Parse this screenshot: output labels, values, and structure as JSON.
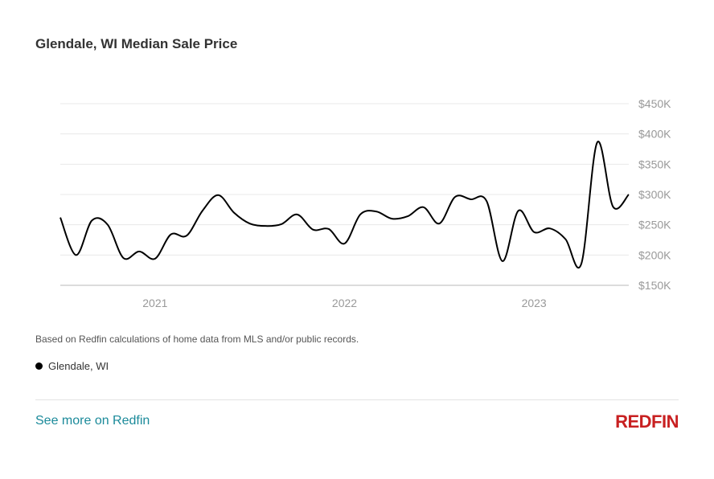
{
  "title": "Glendale, WI Median Sale Price",
  "note": "Based on Redfin calculations of home data from MLS and/or public records.",
  "legend": {
    "label": "Glendale, WI",
    "color": "#000000"
  },
  "footer": {
    "link": "See more on Redfin",
    "logo": "REDFIN",
    "link_color": "#1b8a9a",
    "logo_color": "#c82021"
  },
  "chart_data": {
    "type": "line",
    "title": "Glendale, WI Median Sale Price",
    "ylim": [
      150000,
      450000
    ],
    "y_ticks": [
      150000,
      200000,
      250000,
      300000,
      350000,
      400000,
      450000
    ],
    "y_tick_labels": [
      "$150K",
      "$200K",
      "$250K",
      "$300K",
      "$350K",
      "$400K",
      "$450K"
    ],
    "y_axis_position": "right",
    "x_tick_labels": [
      "2021",
      "2022",
      "2023"
    ],
    "grid": true,
    "legend": "bottom-left",
    "series": [
      {
        "name": "Glendale, WI",
        "color": "#000000",
        "x": [
          "2020-07",
          "2020-08",
          "2020-09",
          "2020-10",
          "2020-11",
          "2020-12",
          "2021-01",
          "2021-02",
          "2021-03",
          "2021-04",
          "2021-05",
          "2021-06",
          "2021-07",
          "2021-08",
          "2021-09",
          "2021-10",
          "2021-11",
          "2021-12",
          "2022-01",
          "2022-02",
          "2022-03",
          "2022-04",
          "2022-05",
          "2022-06",
          "2022-07",
          "2022-08",
          "2022-09",
          "2022-10",
          "2022-11",
          "2022-12",
          "2023-01",
          "2023-02",
          "2023-03",
          "2023-04",
          "2023-05",
          "2023-06",
          "2023-07"
        ],
        "values": [
          262000,
          200000,
          257000,
          250000,
          195000,
          206000,
          194000,
          234000,
          232000,
          273000,
          299000,
          270000,
          252000,
          248000,
          251000,
          267000,
          242000,
          243000,
          219000,
          267000,
          272000,
          260000,
          264000,
          279000,
          252000,
          296000,
          292000,
          289000,
          190000,
          273000,
          238000,
          244000,
          226000,
          186000,
          386000,
          280000,
          300000
        ]
      }
    ]
  }
}
